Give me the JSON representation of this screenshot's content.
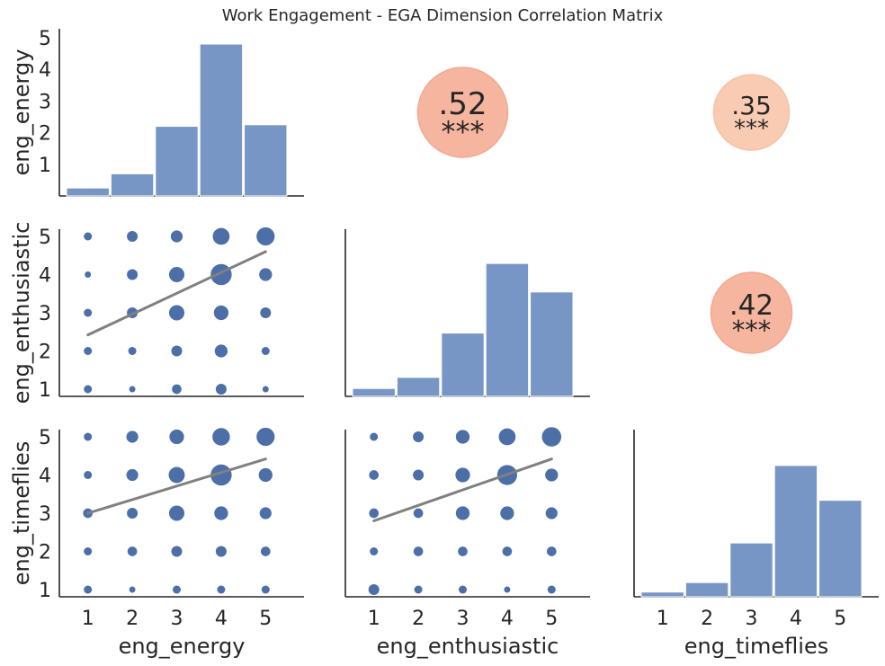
{
  "colors": {
    "bar": "#7796c5",
    "point": "#4c6fa8",
    "line": "#808080",
    "bubble_strong": "#f5a98e",
    "bubble_weak": "#f8c3a5",
    "axis": "#262626"
  },
  "chart_data": {
    "type": "pair-grid",
    "title": "Work Engagement - EGA Dimension Correlation Matrix",
    "variables": [
      "eng_energy",
      "eng_enthusiastic",
      "eng_timeflies"
    ],
    "ticks": [
      "1",
      "2",
      "3",
      "4",
      "5"
    ],
    "diag_yticks": [
      "1",
      "2",
      "3",
      "4",
      "5"
    ],
    "diag_ylim": [
      0,
      5
    ],
    "histograms": [
      {
        "variable": "eng_energy",
        "bins": [
          1,
          2,
          3,
          4,
          5
        ],
        "values": [
          0.25,
          0.7,
          2.2,
          4.8,
          2.25
        ]
      },
      {
        "variable": "eng_enthusiastic",
        "bins": [
          1,
          2,
          3,
          4,
          5
        ],
        "values": [
          0.25,
          0.6,
          2.0,
          4.2,
          3.3
        ]
      },
      {
        "variable": "eng_timeflies",
        "bins": [
          1,
          2,
          3,
          4,
          5
        ],
        "values": [
          0.15,
          0.45,
          1.7,
          4.15,
          3.05
        ]
      }
    ],
    "correlations": [
      {
        "row": 0,
        "col": 1,
        "r_label": ".52",
        "stars": "***",
        "strength": "strong"
      },
      {
        "row": 0,
        "col": 2,
        "r_label": ".35",
        "stars": "***",
        "strength": "weak"
      },
      {
        "row": 1,
        "col": 2,
        "r_label": ".42",
        "stars": "***",
        "strength": "strong"
      }
    ],
    "scatters": [
      {
        "row": 1,
        "col": 0,
        "x": "eng_energy",
        "y": "eng_enthusiastic",
        "counts": [
          [
            2,
            1,
            3,
            4,
            1
          ],
          [
            2,
            2,
            4,
            6,
            2
          ],
          [
            2,
            4,
            9,
            8,
            4
          ],
          [
            1,
            4,
            9,
            18,
            6
          ],
          [
            2,
            4,
            5,
            11,
            13
          ]
        ],
        "fit": [
          [
            1,
            2.42
          ],
          [
            5,
            4.6
          ]
        ]
      },
      {
        "row": 2,
        "col": 0,
        "x": "eng_energy",
        "y": "eng_timeflies",
        "counts": [
          [
            2,
            1,
            2,
            2,
            2
          ],
          [
            2,
            3,
            4,
            4,
            3
          ],
          [
            3,
            4,
            9,
            7,
            5
          ],
          [
            2,
            5,
            10,
            18,
            7
          ],
          [
            2,
            5,
            8,
            12,
            13
          ]
        ],
        "fit": [
          [
            1,
            3.0
          ],
          [
            5,
            4.42
          ]
        ]
      },
      {
        "row": 2,
        "col": 1,
        "x": "eng_enthusiastic",
        "y": "eng_timeflies",
        "counts": [
          [
            4,
            2,
            2,
            1,
            2
          ],
          [
            2,
            3,
            3,
            3,
            3
          ],
          [
            3,
            3,
            7,
            7,
            5
          ],
          [
            3,
            4,
            8,
            16,
            6
          ],
          [
            2,
            4,
            7,
            11,
            15
          ]
        ],
        "fit": [
          [
            1,
            2.8
          ],
          [
            5,
            4.42
          ]
        ]
      }
    ]
  }
}
